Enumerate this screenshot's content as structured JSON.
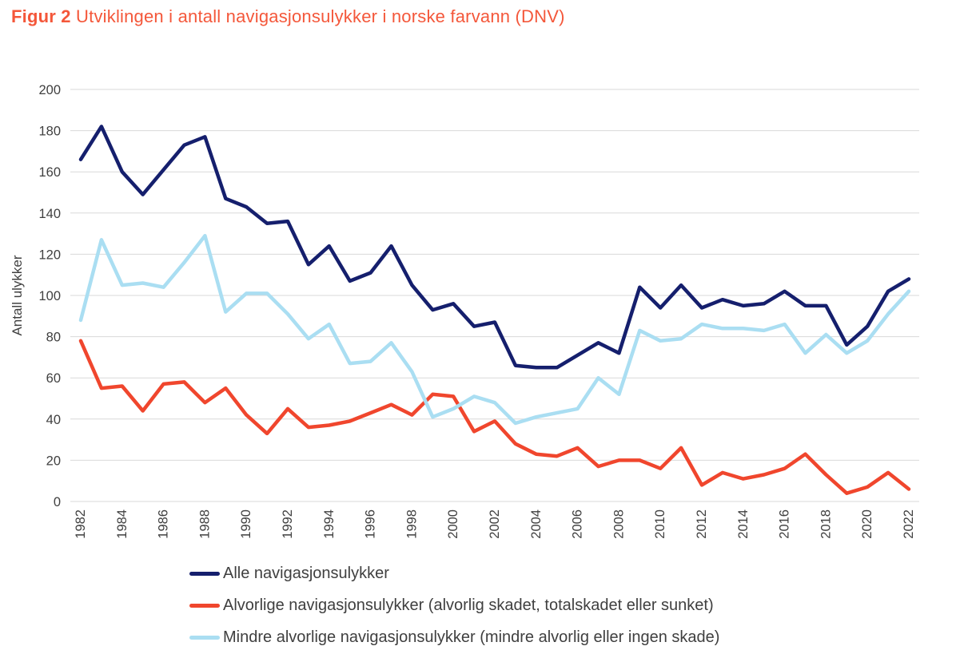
{
  "title": {
    "label_bold": "Figur 2",
    "label_rest": " Utviklingen i antall navigasjonsulykker i norske farvann (DNV)",
    "color": "#F4573A"
  },
  "colors": {
    "background": "#FFFFFF",
    "grid": "#D9D9D9",
    "axis_text": "#404040",
    "navy": "#151F6D",
    "red": "#F0462D",
    "light_blue": "#AADEF2"
  },
  "y_axis": {
    "label": "Antall ulykker"
  },
  "legend": [
    {
      "id": "alle",
      "label": "Alle navigasjonsulykker",
      "color": "#151F6D"
    },
    {
      "id": "alvorlige",
      "label": "Alvorlige navigasjonsulykker (alvorlig skadet, totalskadet eller sunket)",
      "color": "#F0462D"
    },
    {
      "id": "mindre",
      "label": "Mindre alvorlige navigasjonsulykker (mindre alvorlig eller ingen skade)",
      "color": "#AADEF2"
    }
  ],
  "chart_data": {
    "type": "line",
    "title": "Figur 2 Utviklingen i antall navigasjonsulykker i norske farvann (DNV)",
    "xlabel": "",
    "ylabel": "Antall ulykker",
    "ylim": [
      0,
      200
    ],
    "y_ticks": [
      0,
      20,
      40,
      60,
      80,
      100,
      120,
      140,
      160,
      180,
      200
    ],
    "grid": "horizontal",
    "legend_position": "bottom",
    "x": [
      1982,
      1983,
      1984,
      1985,
      1986,
      1987,
      1988,
      1989,
      1990,
      1991,
      1992,
      1993,
      1994,
      1995,
      1996,
      1997,
      1998,
      1999,
      2000,
      2001,
      2002,
      2003,
      2004,
      2005,
      2006,
      2007,
      2008,
      2009,
      2010,
      2011,
      2012,
      2013,
      2014,
      2015,
      2016,
      2017,
      2018,
      2019,
      2020,
      2021,
      2022
    ],
    "x_tick_labels": [
      "1982",
      "1984",
      "1986",
      "1988",
      "1990",
      "1992",
      "1994",
      "1996",
      "1998",
      "2000",
      "2002",
      "2004",
      "2006",
      "2008",
      "2010",
      "2012",
      "2014",
      "2016",
      "2018",
      "2020",
      "2022"
    ],
    "series": [
      {
        "id": "alle",
        "name": "Alle navigasjonsulykker",
        "color": "#151F6D",
        "values": [
          166,
          182,
          160,
          149,
          161,
          173,
          177,
          147,
          143,
          135,
          136,
          115,
          124,
          107,
          111,
          124,
          105,
          93,
          96,
          85,
          87,
          66,
          65,
          65,
          71,
          77,
          72,
          104,
          94,
          105,
          94,
          98,
          95,
          96,
          102,
          95,
          95,
          76,
          85,
          102,
          108
        ]
      },
      {
        "id": "alvorlige",
        "name": "Alvorlige navigasjonsulykker (alvorlig skadet, totalskadet eller sunket)",
        "color": "#F0462D",
        "values": [
          78,
          55,
          56,
          44,
          57,
          58,
          48,
          55,
          42,
          33,
          45,
          36,
          37,
          39,
          43,
          47,
          42,
          52,
          51,
          34,
          39,
          28,
          23,
          22,
          26,
          17,
          20,
          20,
          16,
          26,
          8,
          14,
          11,
          13,
          16,
          23,
          13,
          4,
          7,
          14,
          6
        ]
      },
      {
        "id": "mindre",
        "name": "Mindre alvorlige navigasjonsulykker (mindre alvorlig eller ingen skade)",
        "color": "#AADEF2",
        "values": [
          88,
          127,
          105,
          106,
          104,
          116,
          129,
          92,
          101,
          101,
          91,
          79,
          86,
          67,
          68,
          77,
          63,
          41,
          45,
          51,
          48,
          38,
          41,
          43,
          45,
          60,
          52,
          83,
          78,
          79,
          86,
          84,
          84,
          83,
          86,
          72,
          81,
          72,
          78,
          91,
          102
        ]
      }
    ]
  }
}
